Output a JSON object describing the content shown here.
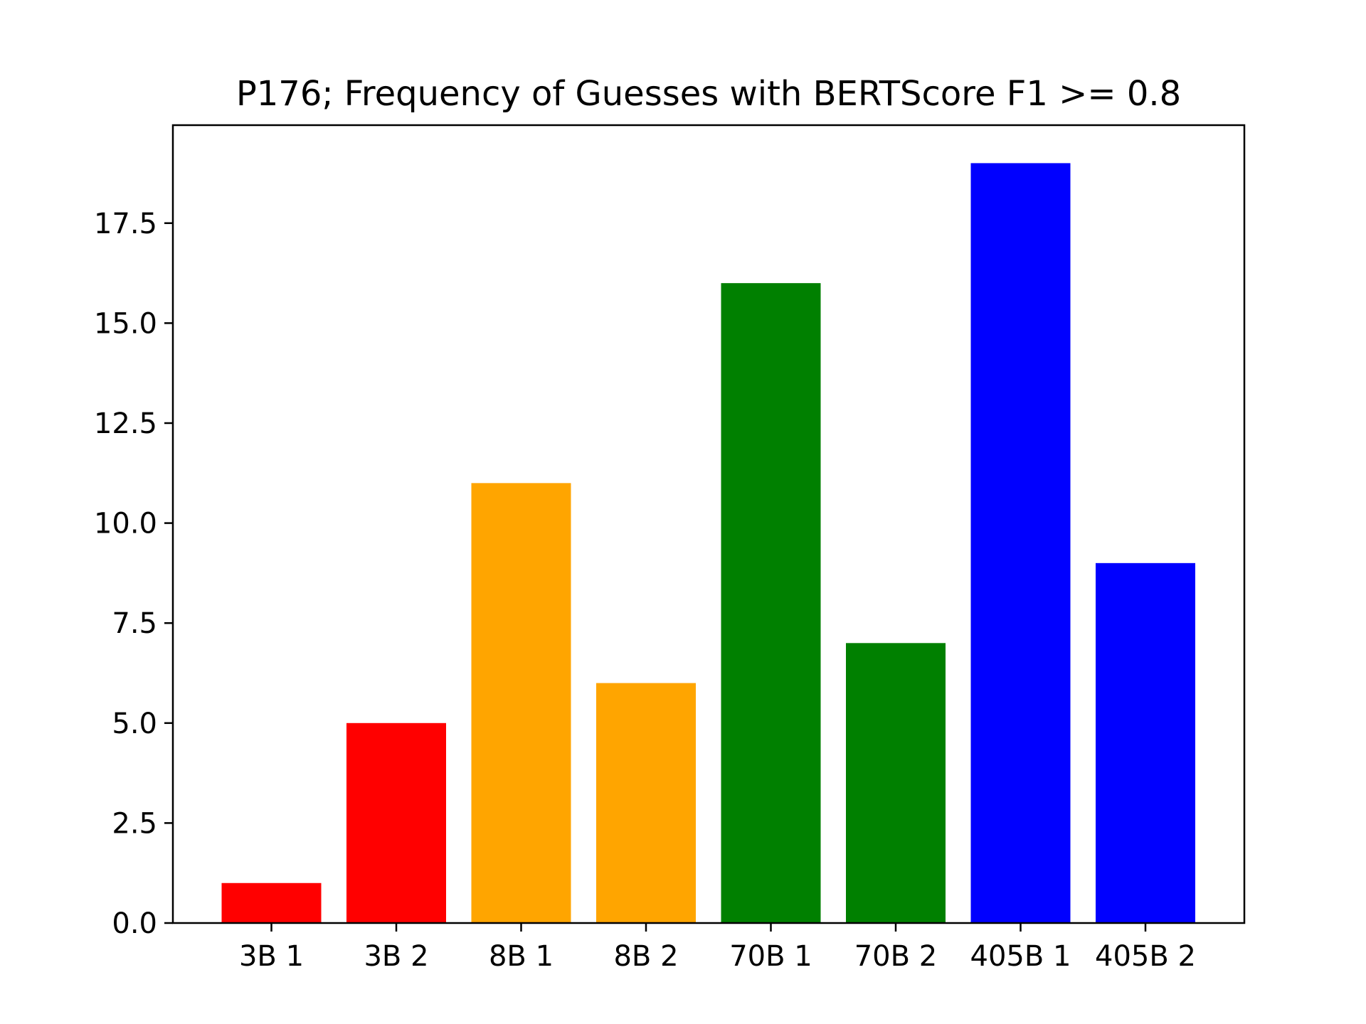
{
  "chart_data": {
    "type": "bar",
    "title": "P176; Frequency of Guesses with BERTScore F1 >= 0.8",
    "xlabel": "",
    "ylabel": "",
    "categories": [
      "3B 1",
      "3B 2",
      "8B 1",
      "8B 2",
      "70B 1",
      "70B 2",
      "405B 1",
      "405B 2"
    ],
    "values": [
      1,
      5,
      11,
      6,
      16,
      7,
      19,
      9
    ],
    "colors": [
      "#ff0000",
      "#ff0000",
      "#ffa500",
      "#ffa500",
      "#008000",
      "#008000",
      "#0000ff",
      "#0000ff"
    ],
    "ylim": [
      0,
      19.95
    ],
    "yticks": [
      0.0,
      2.5,
      5.0,
      7.5,
      10.0,
      12.5,
      15.0,
      17.5
    ],
    "ytick_labels": [
      "0.0",
      "2.5",
      "5.0",
      "7.5",
      "10.0",
      "12.5",
      "15.0",
      "17.5"
    ],
    "grid": false,
    "legend": "none"
  }
}
